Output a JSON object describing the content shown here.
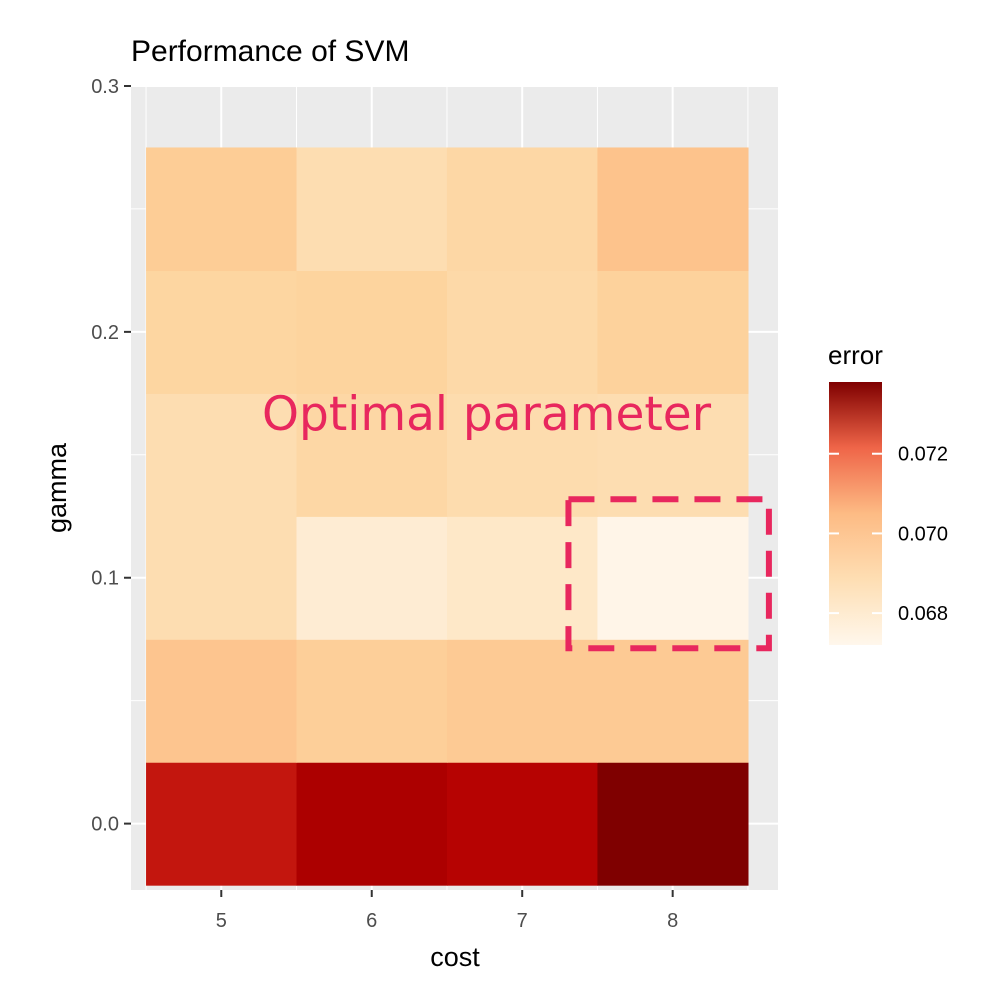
{
  "chart_data": {
    "type": "heatmap",
    "title": "Performance of SVM",
    "xlabel": "cost",
    "ylabel": "gamma",
    "x": [
      5,
      6,
      7,
      8
    ],
    "y": [
      0.0,
      0.05,
      0.1,
      0.15,
      0.2,
      0.25
    ],
    "x_ticks": [
      "5",
      "6",
      "7",
      "8"
    ],
    "y_ticks": [
      "0.0",
      "0.1",
      "0.2",
      "0.3"
    ],
    "y_tick_values": [
      0.0,
      0.1,
      0.2,
      0.3
    ],
    "xlim": [
      4.4,
      8.7
    ],
    "ylim": [
      -0.027,
      0.3
    ],
    "values": [
      [
        0.0731,
        0.0734,
        0.0733,
        0.0738
      ],
      [
        0.0701,
        0.0697,
        0.0699,
        0.0699
      ],
      [
        0.0689,
        0.0679,
        0.0682,
        0.0673
      ],
      [
        0.0689,
        0.0693,
        0.069,
        0.0689
      ],
      [
        0.0694,
        0.0695,
        0.0692,
        0.0696
      ],
      [
        0.0698,
        0.0689,
        0.0693,
        0.0702
      ]
    ],
    "legend": {
      "title": "error",
      "ticks": [
        0.068,
        0.07,
        0.072
      ],
      "tick_labels": [
        "0.068",
        "0.070",
        "0.072"
      ],
      "range": [
        0.0672,
        0.0738
      ],
      "placement": "right"
    },
    "colors": {
      "low": "#fff7ec",
      "mid": "#fdbb84",
      "high": "#7f0000",
      "panel_bg": "#ebebeb",
      "grid": "#ffffff"
    },
    "annotation": {
      "text": "Optimal parameter",
      "color": "#e8275e",
      "highlight": {
        "cost": 8,
        "gamma": 0.1
      }
    }
  }
}
